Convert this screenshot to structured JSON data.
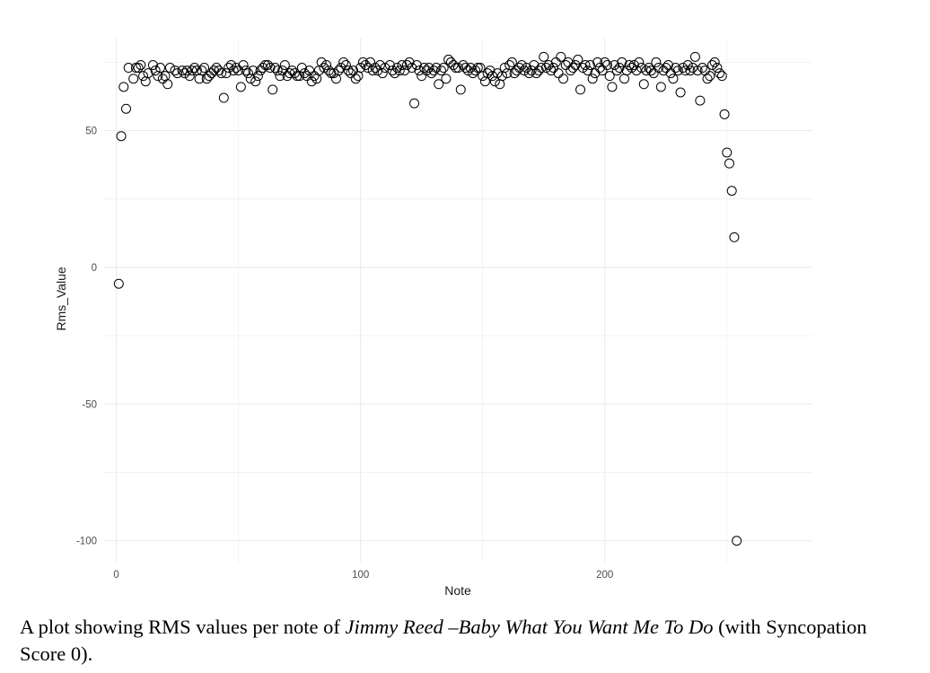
{
  "chart_data": {
    "type": "scatter",
    "xlabel": "Note",
    "ylabel": "Rms_Value",
    "xlim": [
      -5,
      285
    ],
    "ylim": [
      -108,
      84
    ],
    "x_ticks": [
      0,
      100,
      200
    ],
    "y_ticks": [
      -100,
      -50,
      0,
      50
    ],
    "grid": true,
    "marker": "open-circle",
    "points": [
      [
        1,
        -6
      ],
      [
        2,
        48
      ],
      [
        3,
        66
      ],
      [
        4,
        58
      ],
      [
        5,
        73
      ],
      [
        7,
        69
      ],
      [
        8,
        73
      ],
      [
        9,
        73
      ],
      [
        10,
        74
      ],
      [
        11,
        70
      ],
      [
        12,
        68
      ],
      [
        13,
        71
      ],
      [
        15,
        74
      ],
      [
        16,
        72
      ],
      [
        17,
        70
      ],
      [
        18,
        73
      ],
      [
        19,
        69
      ],
      [
        20,
        70
      ],
      [
        21,
        67
      ],
      [
        22,
        73
      ],
      [
        24,
        72
      ],
      [
        25,
        71
      ],
      [
        27,
        72
      ],
      [
        28,
        71
      ],
      [
        29,
        72
      ],
      [
        30,
        70
      ],
      [
        31,
        72
      ],
      [
        32,
        73
      ],
      [
        33,
        72
      ],
      [
        34,
        69
      ],
      [
        35,
        72
      ],
      [
        36,
        73
      ],
      [
        37,
        69
      ],
      [
        38,
        70
      ],
      [
        39,
        71
      ],
      [
        40,
        72
      ],
      [
        41,
        73
      ],
      [
        42,
        72
      ],
      [
        43,
        71
      ],
      [
        44,
        62
      ],
      [
        45,
        71
      ],
      [
        46,
        73
      ],
      [
        47,
        74
      ],
      [
        48,
        72
      ],
      [
        49,
        73
      ],
      [
        50,
        72
      ],
      [
        51,
        66
      ],
      [
        52,
        74
      ],
      [
        53,
        72
      ],
      [
        54,
        71
      ],
      [
        55,
        69
      ],
      [
        56,
        72
      ],
      [
        57,
        68
      ],
      [
        58,
        70
      ],
      [
        59,
        72
      ],
      [
        60,
        73
      ],
      [
        61,
        74
      ],
      [
        62,
        74
      ],
      [
        63,
        73
      ],
      [
        64,
        65
      ],
      [
        65,
        73
      ],
      [
        66,
        72
      ],
      [
        67,
        70
      ],
      [
        68,
        72
      ],
      [
        69,
        74
      ],
      [
        70,
        70
      ],
      [
        71,
        71
      ],
      [
        72,
        72
      ],
      [
        73,
        71
      ],
      [
        74,
        70
      ],
      [
        75,
        70
      ],
      [
        76,
        73
      ],
      [
        77,
        71
      ],
      [
        78,
        70
      ],
      [
        79,
        72
      ],
      [
        80,
        68
      ],
      [
        81,
        70
      ],
      [
        82,
        69
      ],
      [
        83,
        72
      ],
      [
        84,
        75
      ],
      [
        85,
        73
      ],
      [
        86,
        74
      ],
      [
        87,
        72
      ],
      [
        88,
        71
      ],
      [
        89,
        71
      ],
      [
        90,
        69
      ],
      [
        91,
        72
      ],
      [
        92,
        73
      ],
      [
        93,
        75
      ],
      [
        94,
        74
      ],
      [
        95,
        72
      ],
      [
        96,
        71
      ],
      [
        97,
        72
      ],
      [
        98,
        69
      ],
      [
        99,
        70
      ],
      [
        100,
        73
      ],
      [
        101,
        75
      ],
      [
        102,
        74
      ],
      [
        103,
        73
      ],
      [
        104,
        75
      ],
      [
        105,
        72
      ],
      [
        106,
        73
      ],
      [
        107,
        72
      ],
      [
        108,
        74
      ],
      [
        109,
        71
      ],
      [
        110,
        73
      ],
      [
        112,
        74
      ],
      [
        113,
        72
      ],
      [
        114,
        71
      ],
      [
        115,
        73
      ],
      [
        116,
        72
      ],
      [
        117,
        74
      ],
      [
        118,
        72
      ],
      [
        119,
        74
      ],
      [
        120,
        75
      ],
      [
        121,
        73
      ],
      [
        122,
        60
      ],
      [
        123,
        74
      ],
      [
        124,
        72
      ],
      [
        125,
        70
      ],
      [
        126,
        73
      ],
      [
        127,
        72
      ],
      [
        128,
        73
      ],
      [
        129,
        71
      ],
      [
        130,
        72
      ],
      [
        131,
        73
      ],
      [
        132,
        67
      ],
      [
        133,
        72
      ],
      [
        134,
        73
      ],
      [
        135,
        69
      ],
      [
        136,
        76
      ],
      [
        137,
        75
      ],
      [
        138,
        74
      ],
      [
        139,
        73
      ],
      [
        140,
        73
      ],
      [
        141,
        65
      ],
      [
        142,
        74
      ],
      [
        143,
        73
      ],
      [
        144,
        72
      ],
      [
        145,
        73
      ],
      [
        146,
        71
      ],
      [
        147,
        72
      ],
      [
        148,
        73
      ],
      [
        149,
        73
      ],
      [
        150,
        70
      ],
      [
        151,
        68
      ],
      [
        152,
        71
      ],
      [
        153,
        72
      ],
      [
        154,
        70
      ],
      [
        155,
        68
      ],
      [
        156,
        71
      ],
      [
        157,
        67
      ],
      [
        158,
        70
      ],
      [
        159,
        73
      ],
      [
        160,
        71
      ],
      [
        161,
        74
      ],
      [
        162,
        75
      ],
      [
        163,
        71
      ],
      [
        164,
        72
      ],
      [
        165,
        73
      ],
      [
        166,
        74
      ],
      [
        167,
        72
      ],
      [
        168,
        73
      ],
      [
        169,
        71
      ],
      [
        170,
        72
      ],
      [
        171,
        74
      ],
      [
        172,
        71
      ],
      [
        173,
        72
      ],
      [
        174,
        73
      ],
      [
        175,
        77
      ],
      [
        176,
        73
      ],
      [
        177,
        74
      ],
      [
        178,
        72
      ],
      [
        179,
        73
      ],
      [
        180,
        75
      ],
      [
        181,
        71
      ],
      [
        182,
        77
      ],
      [
        183,
        69
      ],
      [
        184,
        74
      ],
      [
        185,
        75
      ],
      [
        186,
        72
      ],
      [
        187,
        73
      ],
      [
        188,
        74
      ],
      [
        189,
        76
      ],
      [
        190,
        65
      ],
      [
        191,
        73
      ],
      [
        192,
        74
      ],
      [
        193,
        72
      ],
      [
        194,
        74
      ],
      [
        195,
        69
      ],
      [
        196,
        71
      ],
      [
        197,
        75
      ],
      [
        198,
        73
      ],
      [
        199,
        72
      ],
      [
        200,
        75
      ],
      [
        201,
        74
      ],
      [
        202,
        70
      ],
      [
        203,
        66
      ],
      [
        204,
        74
      ],
      [
        205,
        72
      ],
      [
        206,
        73
      ],
      [
        207,
        75
      ],
      [
        208,
        69
      ],
      [
        209,
        72
      ],
      [
        210,
        74
      ],
      [
        211,
        73
      ],
      [
        212,
        74
      ],
      [
        213,
        72
      ],
      [
        214,
        75
      ],
      [
        215,
        73
      ],
      [
        216,
        67
      ],
      [
        217,
        72
      ],
      [
        218,
        73
      ],
      [
        219,
        72
      ],
      [
        220,
        71
      ],
      [
        221,
        75
      ],
      [
        222,
        73
      ],
      [
        223,
        66
      ],
      [
        224,
        72
      ],
      [
        225,
        73
      ],
      [
        226,
        74
      ],
      [
        227,
        71
      ],
      [
        228,
        69
      ],
      [
        229,
        73
      ],
      [
        230,
        72
      ],
      [
        231,
        64
      ],
      [
        232,
        73
      ],
      [
        233,
        72
      ],
      [
        234,
        74
      ],
      [
        235,
        72
      ],
      [
        236,
        73
      ],
      [
        237,
        77
      ],
      [
        238,
        72
      ],
      [
        239,
        61
      ],
      [
        240,
        73
      ],
      [
        241,
        72
      ],
      [
        242,
        69
      ],
      [
        243,
        70
      ],
      [
        244,
        74
      ],
      [
        245,
        75
      ],
      [
        246,
        73
      ],
      [
        247,
        71
      ],
      [
        248,
        70
      ],
      [
        249,
        56
      ],
      [
        250,
        42
      ],
      [
        251,
        38
      ],
      [
        252,
        28
      ],
      [
        253,
        11
      ],
      [
        254,
        -100
      ]
    ]
  },
  "caption": {
    "prefix": "A plot showing RMS values per note of ",
    "title": "Jimmy Reed –Baby What You Want Me To Do",
    "suffix": " (with Syncopation Score 0)."
  }
}
